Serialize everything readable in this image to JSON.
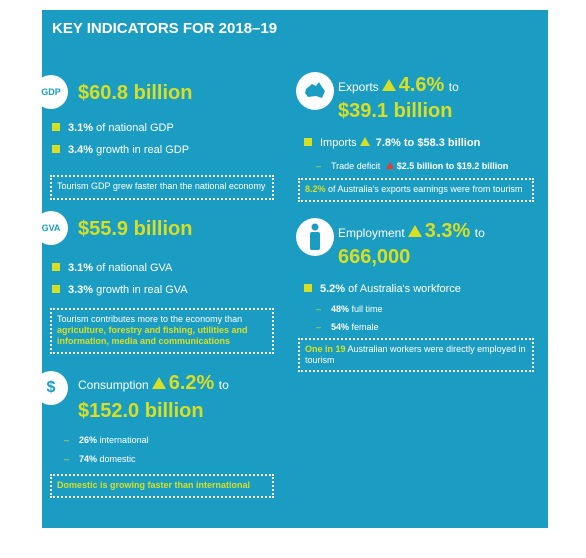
{
  "header": {
    "title": "KEY INDICATORS FOR 2018–19"
  },
  "gdp": {
    "badge": "GDP",
    "headline": "$60.8 billion",
    "bullets": [
      {
        "strong": "3.1%",
        "rest": "of national GDP"
      },
      {
        "strong": "3.4%",
        "rest": "growth in real GDP"
      }
    ],
    "note": "Tourism GDP grew faster than the national economy"
  },
  "gva": {
    "badge": "GVA",
    "headline": "$55.9 billion",
    "bullets": [
      {
        "strong": "3.1%",
        "rest": "of national GVA"
      },
      {
        "strong": "3.3%",
        "rest": "growth in real GVA"
      }
    ],
    "note": {
      "text": "Tourism contributes more to the economy than",
      "highlight": "agriculture, forestry and fishing, utilities and information, media and communications"
    }
  },
  "consumption": {
    "label": "Consumption",
    "change": "6.2%",
    "to": "to",
    "headline": "$152.0 billion",
    "subs": [
      {
        "strong": "26%",
        "rest": "international"
      },
      {
        "strong": "74%",
        "rest": "domestic"
      }
    ],
    "note": "Domestic is growing faster than international"
  },
  "exports": {
    "label": "Exports",
    "change": "4.6%",
    "to": "to",
    "headline": "$39.1 billion",
    "imports": {
      "label": "Imports",
      "change": "7.8%",
      "rest": "to $58.3 billion"
    },
    "deficit": {
      "label": "Trade deficit",
      "rest": "$2.5 billion to $19.2 billion"
    },
    "note": {
      "highlight": "8.2%",
      "text": "of Australia's exports earnings were from tourism"
    }
  },
  "employment": {
    "label": "Employment",
    "change": "3.3%",
    "to": "to",
    "headline": "666,000",
    "bullets": [
      {
        "strong": "5.2%",
        "rest": "of Australia's workforce"
      }
    ],
    "subs": [
      {
        "strong": "48%",
        "rest": "full time"
      },
      {
        "strong": "54%",
        "rest": "female"
      }
    ],
    "note": {
      "highlight": "One in 19",
      "text": "Australian workers were directly employed in tourism"
    }
  }
}
